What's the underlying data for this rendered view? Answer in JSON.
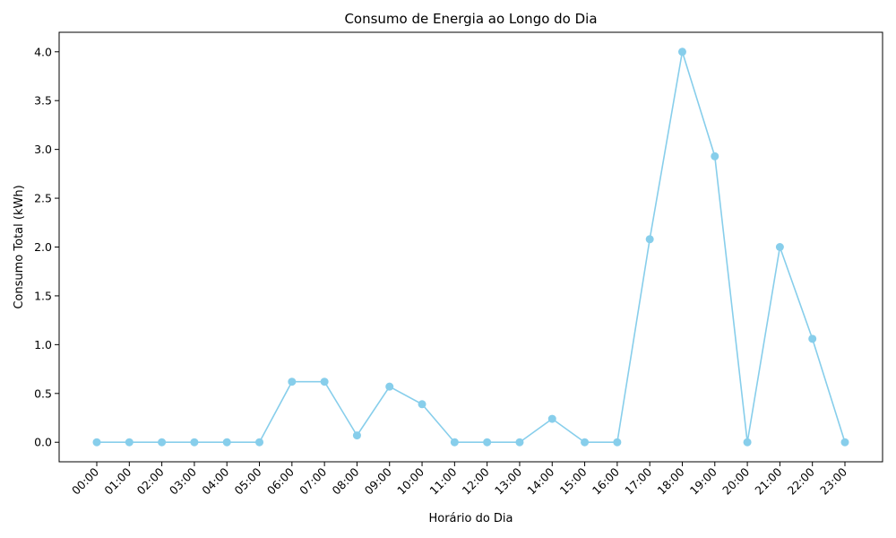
{
  "chart_data": {
    "type": "line",
    "title": "Consumo de Energia ao Longo do Dia",
    "xlabel": "Horário do Dia",
    "ylabel": "Consumo Total (kWh)",
    "categories": [
      "00:00",
      "01:00",
      "02:00",
      "03:00",
      "04:00",
      "05:00",
      "06:00",
      "07:00",
      "08:00",
      "09:00",
      "10:00",
      "11:00",
      "12:00",
      "13:00",
      "14:00",
      "15:00",
      "16:00",
      "17:00",
      "18:00",
      "19:00",
      "20:00",
      "21:00",
      "22:00",
      "23:00"
    ],
    "series": [
      {
        "values": [
          0,
          0,
          0,
          0,
          0,
          0,
          0.62,
          0.62,
          0.07,
          0.57,
          0.39,
          0,
          0,
          0,
          0.24,
          0,
          0,
          2.08,
          4.0,
          2.93,
          0,
          2.0,
          1.06,
          0
        ],
        "color": "#87ceeb",
        "marker": "circle"
      }
    ],
    "yticks": [
      "0.0",
      "0.5",
      "1.0",
      "1.5",
      "2.0",
      "2.5",
      "3.0",
      "3.5",
      "4.0"
    ],
    "ylim": [
      -0.2,
      4.2
    ],
    "grid": false,
    "legend": "none"
  }
}
